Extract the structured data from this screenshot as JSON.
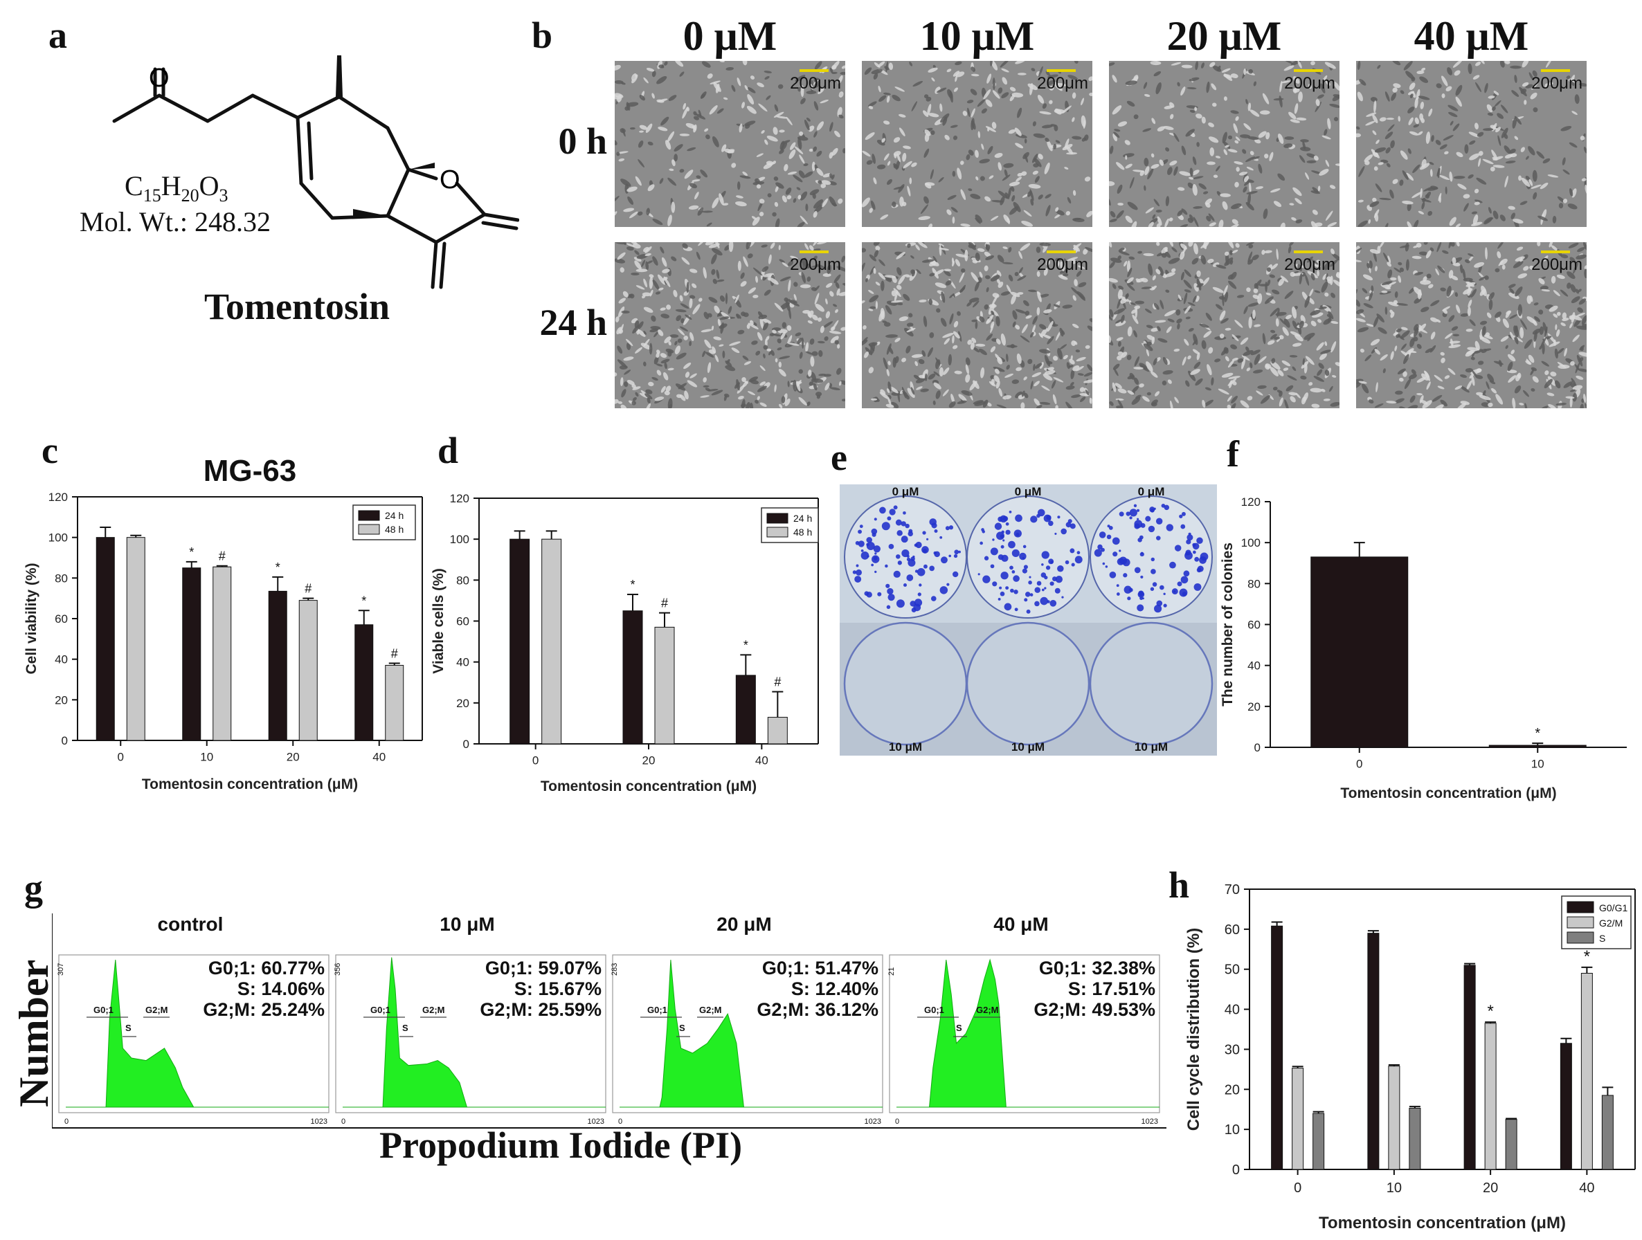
{
  "panels": {
    "a": {
      "letter": "a",
      "name": "Tomentosin",
      "formula_c": "C",
      "formula_c_sub": "15",
      "formula_h": "H",
      "formula_h_sub": "20",
      "formula_o": "O",
      "formula_o_sub": "3",
      "mol_wt": "Mol. Wt.: 248.32",
      "atom_o": "O"
    },
    "b": {
      "letter": "b",
      "columns": [
        "0 μM",
        "10 μM",
        "20 μM",
        "40 μM"
      ],
      "rows": [
        "0 h",
        "24 h"
      ],
      "scale_label": "200μm"
    },
    "c": {
      "letter": "c"
    },
    "d": {
      "letter": "d"
    },
    "e": {
      "letter": "e",
      "top_labels": [
        "0 μM",
        "0 μM",
        "0 μM"
      ],
      "bottom_labels": [
        "10 μM",
        "10 μM",
        "10 μM"
      ]
    },
    "f": {
      "letter": "f"
    },
    "g": {
      "letter": "g",
      "y_label": "Number",
      "x_label": "Propodium Iodide (PI)",
      "x_min_tick": "0",
      "x_max_tick": "1023",
      "gate_labels": {
        "g01": "G0;1",
        "s": "S",
        "g2m": "G2;M"
      },
      "histograms": [
        {
          "title": "control",
          "ymax": "307",
          "stats": [
            "G0;1: 60.77%",
            "S: 14.06%",
            "G2;M: 25.24%"
          ]
        },
        {
          "title": "10 μM",
          "ymax": "356",
          "stats": [
            "G0;1: 59.07%",
            "S: 15.67%",
            "G2;M: 25.59%"
          ]
        },
        {
          "title": "20 μM",
          "ymax": "283",
          "stats": [
            "G0;1: 51.47%",
            "S: 12.40%",
            "G2;M: 36.12%"
          ]
        },
        {
          "title": "40 μM",
          "ymax": "21",
          "stats": [
            "G0;1: 32.38%",
            "S: 17.51%",
            "G2;M: 49.53%"
          ]
        }
      ]
    },
    "h": {
      "letter": "h"
    }
  },
  "colors": {
    "series_dark": "#1f1416",
    "series_light": "#c8c8c8",
    "series_mid": "#7f7f7f",
    "histogram_fill": "#22ee22",
    "plate_stain": "#2233cc",
    "scale_bar": "#e8d400"
  },
  "chart_data": [
    {
      "id": "c",
      "type": "bar",
      "title": "MG-63",
      "xlabel": "Tomentosin concentration (μM)",
      "ylabel": "Cell viability (%)",
      "ylim": [
        0,
        120
      ],
      "yticks": [
        0,
        20,
        40,
        60,
        80,
        100,
        120
      ],
      "categories": [
        "0",
        "10",
        "20",
        "40"
      ],
      "legend_position": "top-right",
      "series": [
        {
          "name": "24 h",
          "values": [
            100,
            85,
            73.5,
            57
          ],
          "errors": [
            5,
            3,
            7,
            7
          ],
          "marks": [
            "",
            "*",
            "*",
            "*"
          ]
        },
        {
          "name": "48 h",
          "values": [
            100,
            85.5,
            69,
            37
          ],
          "errors": [
            1,
            0.5,
            1,
            1
          ],
          "marks": [
            "",
            "#",
            "#",
            "#"
          ]
        }
      ]
    },
    {
      "id": "d",
      "type": "bar",
      "title": "",
      "xlabel": "Tomentosin concentration (μM)",
      "ylabel": "Viable cells (%)",
      "ylim": [
        0,
        120
      ],
      "yticks": [
        0,
        20,
        40,
        60,
        80,
        100,
        120
      ],
      "categories": [
        "0",
        "20",
        "40"
      ],
      "legend_position": "top-right",
      "series": [
        {
          "name": "24 h",
          "values": [
            100,
            65,
            33.5
          ],
          "errors": [
            4,
            8,
            10
          ],
          "marks": [
            "",
            "*",
            "*"
          ]
        },
        {
          "name": "48 h",
          "values": [
            100,
            57,
            13
          ],
          "errors": [
            4,
            7,
            12.5
          ],
          "marks": [
            "",
            "#",
            "#"
          ]
        }
      ]
    },
    {
      "id": "f",
      "type": "bar",
      "title": "",
      "xlabel": "Tomentosin concentration (μM)",
      "ylabel": "The number of colonies",
      "ylim": [
        0,
        120
      ],
      "yticks": [
        0,
        20,
        40,
        60,
        80,
        100,
        120
      ],
      "categories": [
        "0",
        "10"
      ],
      "legend_position": "none",
      "series": [
        {
          "name": "",
          "values": [
            93,
            1
          ],
          "errors": [
            7,
            1
          ],
          "marks": [
            "",
            "*"
          ]
        }
      ]
    },
    {
      "id": "h",
      "type": "bar",
      "title": "",
      "xlabel": "Tomentosin concentration (μM)",
      "ylabel": "Cell cycle distribution (%)",
      "ylim": [
        0,
        70
      ],
      "yticks": [
        0,
        10,
        20,
        30,
        40,
        50,
        60,
        70
      ],
      "categories": [
        "0",
        "10",
        "20",
        "40"
      ],
      "legend_position": "top-right",
      "series": [
        {
          "name": "G0/G1",
          "values": [
            60.8,
            59,
            51,
            31.5
          ],
          "errors": [
            1,
            0.6,
            0.4,
            1.2
          ],
          "marks": [
            "",
            "",
            "",
            ""
          ]
        },
        {
          "name": "G2/M",
          "values": [
            25.3,
            25.8,
            36.5,
            49
          ],
          "errors": [
            0.4,
            0.3,
            0.3,
            1.5
          ],
          "marks": [
            "",
            "",
            "*",
            "*"
          ]
        },
        {
          "name": "S",
          "values": [
            14,
            15.3,
            12.5,
            18.5
          ],
          "errors": [
            0.4,
            0.4,
            0.2,
            2
          ],
          "marks": [
            "",
            "",
            "",
            ""
          ]
        }
      ]
    }
  ]
}
